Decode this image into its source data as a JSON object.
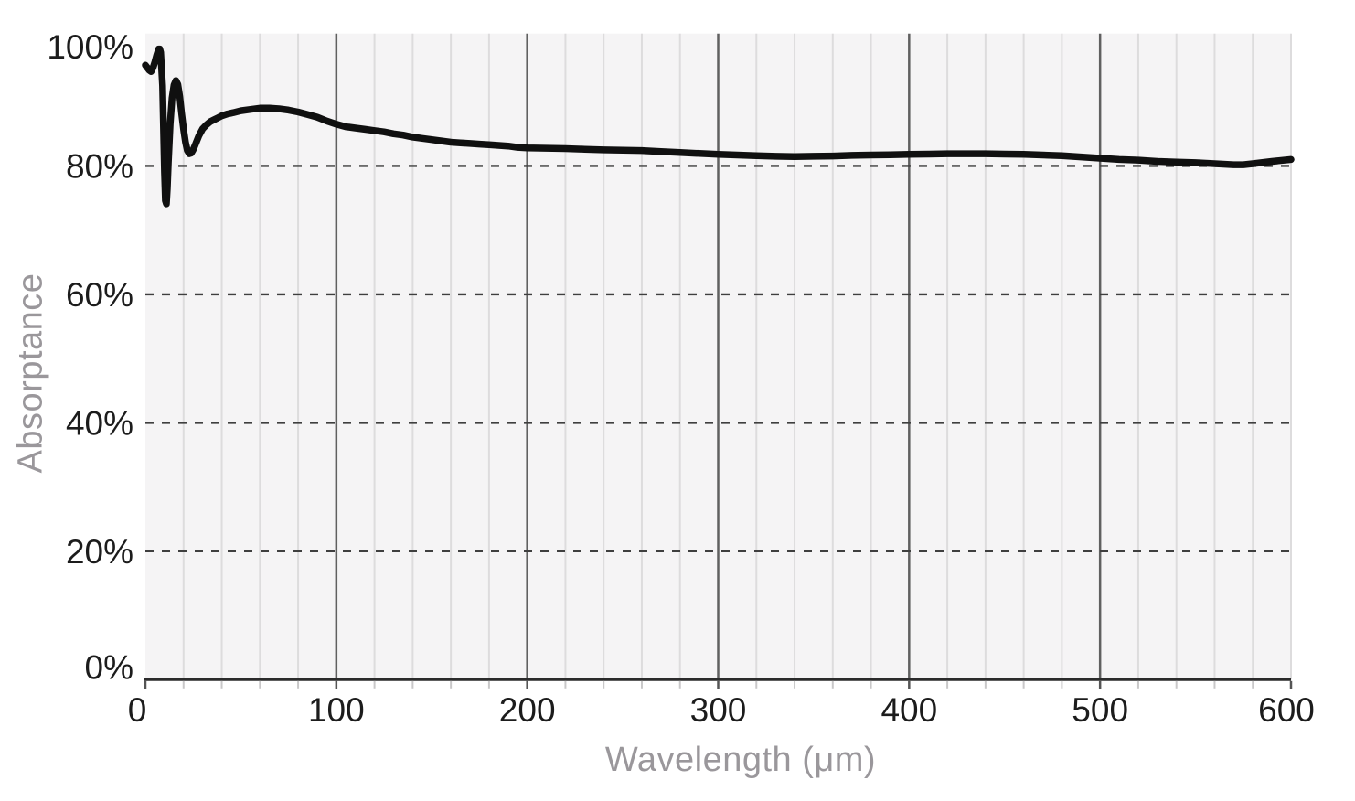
{
  "chart_data": {
    "type": "line",
    "title": "",
    "xlabel": "Wavelength (μm)",
    "ylabel": "Absorptance",
    "xlim": [
      0,
      600
    ],
    "ylim": [
      0,
      100
    ],
    "x_tick_values": [
      0,
      100,
      200,
      300,
      400,
      500,
      600
    ],
    "x_tick_labels": [
      "0",
      "100",
      "200",
      "300",
      "400",
      "500",
      "600"
    ],
    "x_minor_step": 20,
    "y_tick_values": [
      0,
      20,
      40,
      60,
      80,
      100
    ],
    "y_tick_labels": [
      "0%",
      "20%",
      "40%",
      "60%",
      "80%",
      "100%"
    ],
    "y_dashed_gridlines": [
      20,
      40,
      60,
      80
    ],
    "grid": "light solid vertical lines every 20 um, darker solid vertical lines every 100 um, dark dashed horizontal lines at 20/40/60/80 percent",
    "legend": null,
    "series": [
      {
        "name": "Absorptance",
        "color": "#101010",
        "points": [
          [
            0,
            95.7
          ],
          [
            1,
            95.3
          ],
          [
            2,
            94.9
          ],
          [
            3,
            94.7
          ],
          [
            4,
            95.3
          ],
          [
            5,
            96.2
          ],
          [
            6,
            97.3
          ],
          [
            7,
            98.2
          ],
          [
            7.5,
            98.2
          ],
          [
            8,
            97.7
          ],
          [
            9,
            92.5
          ],
          [
            10,
            79.0
          ],
          [
            10.5,
            74.6
          ],
          [
            11,
            74.1
          ],
          [
            11.5,
            76.5
          ],
          [
            12,
            80.5
          ],
          [
            13,
            86.5
          ],
          [
            14,
            90.6
          ],
          [
            15,
            92.6
          ],
          [
            16,
            93.3
          ],
          [
            17,
            92.7
          ],
          [
            18,
            90.8
          ],
          [
            19,
            88.1
          ],
          [
            20,
            85.7
          ],
          [
            21,
            83.7
          ],
          [
            22,
            82.4
          ],
          [
            23,
            81.9
          ],
          [
            24,
            82.0
          ],
          [
            25,
            82.5
          ],
          [
            26,
            83.2
          ],
          [
            28,
            84.7
          ],
          [
            30,
            85.8
          ],
          [
            32,
            86.4
          ],
          [
            34,
            86.9
          ],
          [
            36,
            87.2
          ],
          [
            38,
            87.5
          ],
          [
            40,
            87.8
          ],
          [
            43,
            88.1
          ],
          [
            46,
            88.3
          ],
          [
            50,
            88.6
          ],
          [
            55,
            88.8
          ],
          [
            60,
            89.0
          ],
          [
            65,
            89.0
          ],
          [
            70,
            88.9
          ],
          [
            75,
            88.7
          ],
          [
            80,
            88.4
          ],
          [
            85,
            88.0
          ],
          [
            90,
            87.6
          ],
          [
            95,
            87.0
          ],
          [
            100,
            86.5
          ],
          [
            105,
            86.1
          ],
          [
            110,
            85.9
          ],
          [
            115,
            85.7
          ],
          [
            120,
            85.5
          ],
          [
            125,
            85.3
          ],
          [
            130,
            85.0
          ],
          [
            135,
            84.8
          ],
          [
            140,
            84.5
          ],
          [
            145,
            84.3
          ],
          [
            150,
            84.1
          ],
          [
            155,
            83.9
          ],
          [
            160,
            83.7
          ],
          [
            165,
            83.6
          ],
          [
            170,
            83.5
          ],
          [
            175,
            83.4
          ],
          [
            180,
            83.3
          ],
          [
            185,
            83.2
          ],
          [
            190,
            83.1
          ],
          [
            195,
            82.9
          ],
          [
            200,
            82.8
          ],
          [
            210,
            82.75
          ],
          [
            220,
            82.7
          ],
          [
            230,
            82.6
          ],
          [
            240,
            82.5
          ],
          [
            250,
            82.45
          ],
          [
            260,
            82.4
          ],
          [
            270,
            82.25
          ],
          [
            280,
            82.1
          ],
          [
            290,
            81.95
          ],
          [
            300,
            81.8
          ],
          [
            310,
            81.7
          ],
          [
            320,
            81.6
          ],
          [
            330,
            81.5
          ],
          [
            340,
            81.45
          ],
          [
            350,
            81.5
          ],
          [
            360,
            81.55
          ],
          [
            370,
            81.65
          ],
          [
            380,
            81.7
          ],
          [
            390,
            81.75
          ],
          [
            400,
            81.8
          ],
          [
            410,
            81.85
          ],
          [
            420,
            81.9
          ],
          [
            430,
            81.9
          ],
          [
            440,
            81.9
          ],
          [
            450,
            81.85
          ],
          [
            460,
            81.8
          ],
          [
            470,
            81.7
          ],
          [
            480,
            81.6
          ],
          [
            490,
            81.4
          ],
          [
            500,
            81.2
          ],
          [
            510,
            81.0
          ],
          [
            520,
            80.9
          ],
          [
            530,
            80.7
          ],
          [
            540,
            80.6
          ],
          [
            550,
            80.5
          ],
          [
            560,
            80.35
          ],
          [
            570,
            80.2
          ],
          [
            575,
            80.2
          ],
          [
            580,
            80.35
          ],
          [
            590,
            80.7
          ],
          [
            600,
            81.0
          ]
        ]
      }
    ]
  },
  "colors": {
    "page_bg": "#ffffff",
    "plot_bg": "#f5f4f5",
    "curve": "#101010",
    "grid_minor": "#dddcdd",
    "grid_major": "#606060",
    "grid_dashed": "#3f3f3f",
    "axis_line": "#2b2b2b",
    "tick_minor": "#c9c8c9",
    "tick_major": "#555555",
    "tick_label_color": "#1c1c1c",
    "axis_title_color": "#9a979b"
  }
}
